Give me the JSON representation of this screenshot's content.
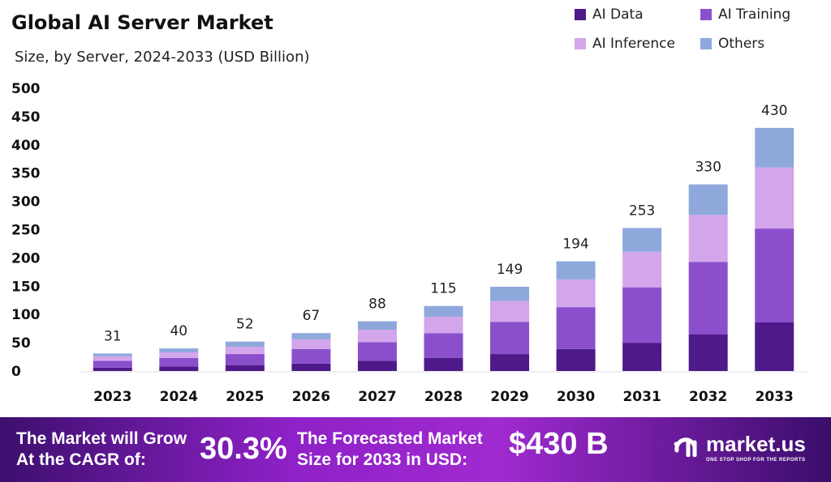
{
  "chart_data": {
    "type": "bar",
    "stacked": true,
    "title": "Global AI Server Market",
    "subtitle": "Size, by Server, 2024-2033 (USD Billion)",
    "categories": [
      "2023",
      "2024",
      "2025",
      "2026",
      "2027",
      "2028",
      "2029",
      "2030",
      "2031",
      "2032",
      "2033"
    ],
    "totals": [
      31,
      40,
      52,
      67,
      88,
      115,
      149,
      194,
      253,
      330,
      430
    ],
    "total_labels": [
      "31",
      "40",
      "52",
      "67",
      "88",
      "115",
      "149",
      "194",
      "253",
      "330",
      "430"
    ],
    "series": [
      {
        "name": "AI Data",
        "color": "#4e1a8a",
        "values": [
          6,
          8,
          10,
          13,
          18,
          23,
          30,
          39,
          50,
          65,
          86
        ]
      },
      {
        "name": "AI Training",
        "color": "#8b4fcc",
        "values": [
          12,
          15,
          20,
          26,
          33,
          44,
          57,
          74,
          98,
          128,
          166
        ]
      },
      {
        "name": "AI Inference",
        "color": "#d3a5ea",
        "values": [
          8,
          10,
          13,
          17,
          22,
          29,
          37,
          49,
          63,
          83,
          108
        ]
      },
      {
        "name": "Others",
        "color": "#8fa8dc",
        "values": [
          5,
          7,
          9,
          11,
          15,
          19,
          25,
          32,
          42,
          54,
          70
        ]
      }
    ],
    "ylim": [
      0,
      500
    ],
    "yticks": [
      "0",
      "50",
      "100",
      "150",
      "200",
      "250",
      "300",
      "350",
      "400",
      "450",
      "500"
    ],
    "grid": false,
    "legend_position": "top-right"
  },
  "footer": {
    "cagr_text_1": "The Market will Grow",
    "cagr_text_2": "At the CAGR of:",
    "cagr_value": "30.3%",
    "forecast_text_1": "The Forecasted Market",
    "forecast_text_2": "Size for 2033 in USD:",
    "forecast_value": "$430 B",
    "logo_name": "market.us",
    "logo_tagline": "ONE STOP SHOP FOR THE REPORTS"
  }
}
